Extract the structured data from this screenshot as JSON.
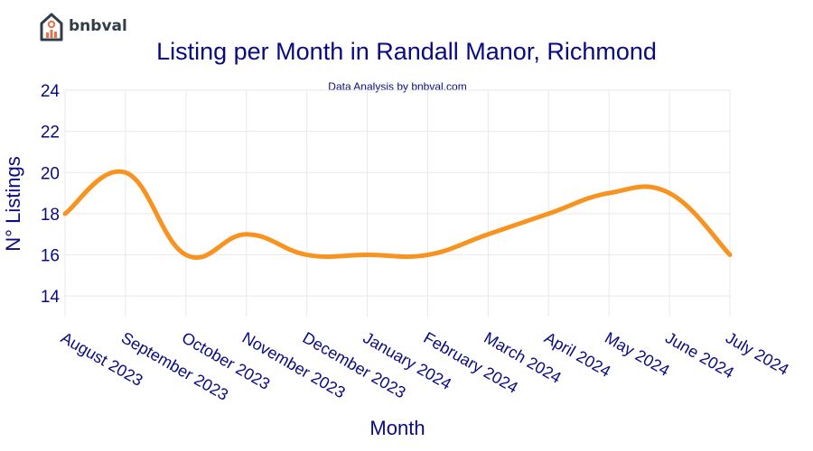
{
  "brand": {
    "name": "bnbval",
    "logo_icon": "house-chart-icon"
  },
  "chart_data": {
    "type": "line",
    "title": "Listing per Month in Randall Manor, Richmond",
    "subtitle": "Data Analysis by bnbval.com",
    "xlabel": "Month",
    "ylabel": "N° Listings",
    "categories": [
      "August 2023",
      "September 2023",
      "October 2023",
      "November 2023",
      "December 2023",
      "January 2024",
      "February 2024",
      "March 2024",
      "April 2024",
      "May 2024",
      "June 2024",
      "July 2024"
    ],
    "series": [
      {
        "values": [
          18,
          20,
          16,
          17,
          16,
          16,
          16,
          17,
          18,
          19,
          19,
          16
        ],
        "color": "#f7931e"
      }
    ],
    "ylim": [
      13,
      24
    ],
    "yticks": [
      14,
      16,
      18,
      20,
      22,
      24
    ],
    "grid": true,
    "colors": {
      "text": "#0a0a80",
      "grid": "#e9e9ee",
      "line": "#f7931e"
    }
  }
}
